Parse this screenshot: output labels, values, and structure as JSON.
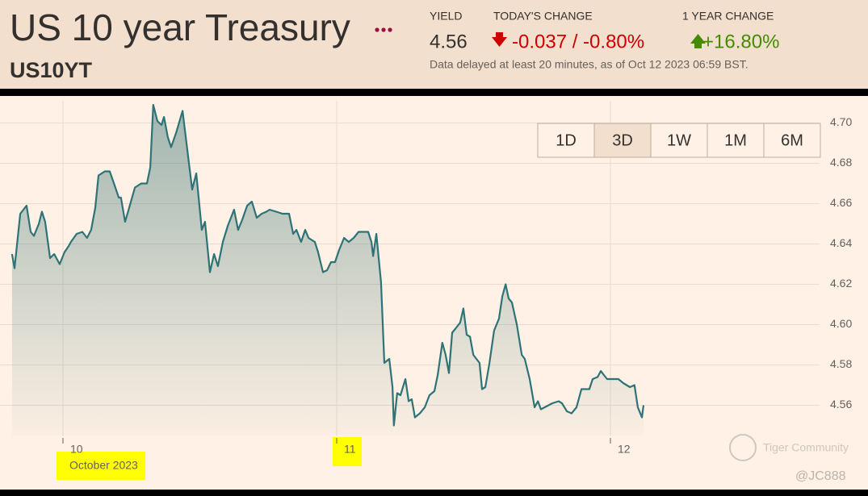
{
  "header": {
    "title": "US 10 year Treasury",
    "symbol": "US10YT",
    "stats": [
      {
        "label": "YIELD",
        "value": "4.56"
      },
      {
        "label": "TODAY'S CHANGE",
        "value": "-0.037 / -0.80%"
      },
      {
        "label": "1 YEAR CHANGE",
        "value": "+16.80%"
      }
    ],
    "note": "Data delayed at least 20 minutes, as of Oct 12 2023 06:59 BST."
  },
  "range_buttons": {
    "options": [
      "1D",
      "3D",
      "1W",
      "1M",
      "6M"
    ],
    "selected": "3D"
  },
  "watermark": {
    "brand": "Tiger Community",
    "user": "@JC888"
  },
  "chart_data": {
    "type": "line",
    "x_axis_sublabel": "October 2023",
    "x": [
      9.814,
      9.823,
      9.844,
      9.867,
      9.882,
      9.894,
      9.912,
      9.923,
      9.935,
      9.953,
      9.968,
      9.988,
      10.006,
      10.021,
      10.029,
      10.05,
      10.071,
      10.088,
      10.103,
      10.118,
      10.13,
      10.153,
      10.171,
      10.189,
      10.204,
      10.212,
      10.227,
      10.242,
      10.263,
      10.286,
      10.307,
      10.319,
      10.33,
      10.345,
      10.36,
      10.369,
      10.383,
      10.395,
      10.413,
      10.437,
      10.454,
      10.472,
      10.487,
      10.507,
      10.519,
      10.537,
      10.552,
      10.566,
      10.584,
      10.602,
      10.625,
      10.64,
      10.655,
      10.673,
      10.69,
      10.708,
      10.726,
      10.743,
      10.755,
      10.779,
      10.802,
      10.826,
      10.841,
      10.853,
      10.87,
      10.885,
      10.897,
      10.92,
      10.932,
      10.95,
      10.965,
      10.979,
      10.994,
      11.009,
      11.027,
      11.044,
      11.062,
      11.08,
      11.115,
      11.127,
      11.133,
      11.145,
      11.162,
      11.174,
      11.192,
      11.204,
      11.209,
      11.221,
      11.233,
      11.251,
      11.263,
      11.274,
      11.286,
      11.304,
      11.322,
      11.339,
      11.357,
      11.369,
      11.386,
      11.398,
      11.41,
      11.422,
      11.434,
      11.451,
      11.463,
      11.475,
      11.487,
      11.499,
      11.522,
      11.531,
      11.543,
      11.558,
      11.575,
      11.593,
      11.605,
      11.617,
      11.628,
      11.64,
      11.658,
      11.676,
      11.687,
      11.705,
      11.723,
      11.735,
      11.746,
      11.788,
      11.811,
      11.823,
      11.841,
      11.858,
      11.876,
      11.894,
      11.923,
      11.935,
      11.953,
      11.965,
      11.976,
      11.988,
      12.029,
      12.047,
      12.071,
      12.088,
      12.1,
      12.115,
      12.121
    ],
    "series": [
      {
        "color": "#2e7377",
        "values": [
          4.635,
          4.628,
          4.655,
          4.659,
          4.646,
          4.644,
          4.65,
          4.656,
          4.651,
          4.633,
          4.635,
          4.63,
          4.636,
          4.639,
          4.641,
          4.645,
          4.646,
          4.643,
          4.647,
          4.658,
          4.674,
          4.676,
          4.676,
          4.669,
          4.663,
          4.663,
          4.651,
          4.658,
          4.668,
          4.67,
          4.67,
          4.678,
          4.709,
          4.701,
          4.699,
          4.703,
          4.693,
          4.688,
          4.695,
          4.706,
          4.687,
          4.667,
          4.675,
          4.647,
          4.651,
          4.626,
          4.635,
          4.629,
          4.641,
          4.649,
          4.657,
          4.647,
          4.652,
          4.659,
          4.661,
          4.653,
          4.655,
          4.656,
          4.657,
          4.656,
          4.655,
          4.655,
          4.645,
          4.647,
          4.641,
          4.647,
          4.643,
          4.641,
          4.636,
          4.626,
          4.627,
          4.631,
          4.631,
          4.637,
          4.643,
          4.641,
          4.643,
          4.646,
          4.646,
          4.641,
          4.634,
          4.645,
          4.621,
          4.581,
          4.583,
          4.569,
          4.55,
          4.566,
          4.565,
          4.573,
          4.562,
          4.563,
          4.554,
          4.556,
          4.559,
          4.565,
          4.567,
          4.575,
          4.591,
          4.585,
          4.576,
          4.596,
          4.598,
          4.601,
          4.608,
          4.595,
          4.594,
          4.585,
          4.581,
          4.568,
          4.569,
          4.581,
          4.597,
          4.603,
          4.614,
          4.62,
          4.613,
          4.611,
          4.6,
          4.585,
          4.583,
          4.573,
          4.559,
          4.562,
          4.558,
          4.561,
          4.562,
          4.561,
          4.557,
          4.556,
          4.559,
          4.568,
          4.568,
          4.573,
          4.574,
          4.577,
          4.575,
          4.573,
          4.573,
          4.571,
          4.569,
          4.57,
          4.559,
          4.554,
          4.56
        ]
      }
    ],
    "xlim": [
      9.77,
      12.764
    ],
    "xticks": [
      10,
      11,
      12
    ],
    "ylim": [
      4.545,
      4.711
    ],
    "yticks": [
      {
        "value": 4.56,
        "label": "4.56"
      },
      {
        "value": 4.58,
        "label": "4.58"
      },
      {
        "value": 4.6,
        "label": "4.60"
      },
      {
        "value": 4.62,
        "label": "4.62"
      },
      {
        "value": 4.64,
        "label": "4.64"
      },
      {
        "value": 4.66,
        "label": "4.66"
      },
      {
        "value": 4.68,
        "label": "4.68"
      },
      {
        "value": 4.7,
        "label": "4.70"
      }
    ],
    "grid": true
  }
}
